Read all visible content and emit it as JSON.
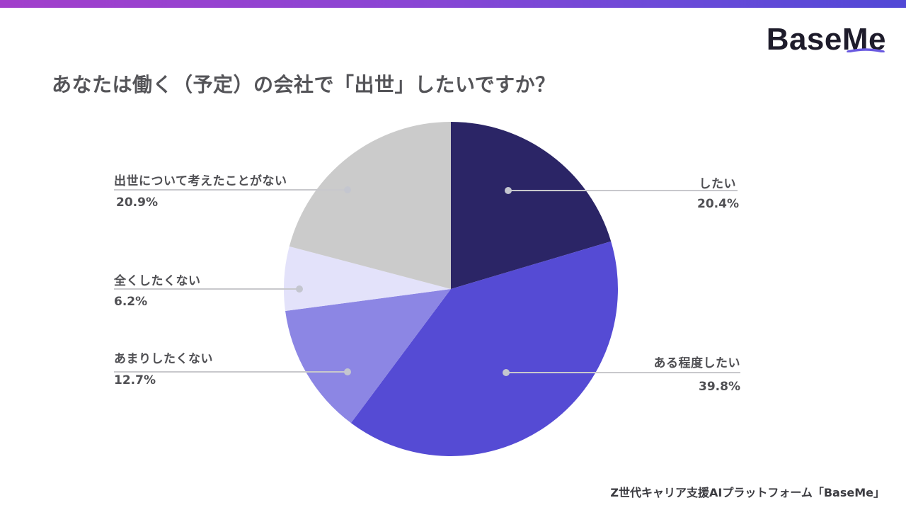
{
  "header": {
    "logo_text": "BaseMe",
    "title": "あなたは働く（予定）の会社で「出世」したいですか？"
  },
  "footer": {
    "text": "Z世代キャリア支援AIプラットフォーム「BaseMe」"
  },
  "colors": {
    "top_bar_start": "#a23fcb",
    "top_bar_end": "#5148d6",
    "leader_line": "#c8c8cc",
    "leader_dot": "#c4c6cf"
  },
  "chart_data": {
    "type": "pie",
    "title": "あなたは働く（予定）の会社で「出世」したいですか？",
    "start_angle_deg": 0,
    "direction": "clockwise",
    "categories": [
      "したい",
      "ある程度したい",
      "あまりしたくない",
      "全くしたくない",
      "出世について考えたことがない"
    ],
    "values": [
      20.4,
      39.8,
      12.7,
      6.2,
      20.9
    ],
    "value_labels": [
      "20.4%",
      "39.8%",
      "12.7%",
      "6.2%",
      "20.9%"
    ],
    "colors": [
      "#2b2566",
      "#554bd4",
      "#8c86e4",
      "#e3e2fa",
      "#cbcbcb"
    ],
    "legend_position": "callout-labels",
    "grid": false
  }
}
